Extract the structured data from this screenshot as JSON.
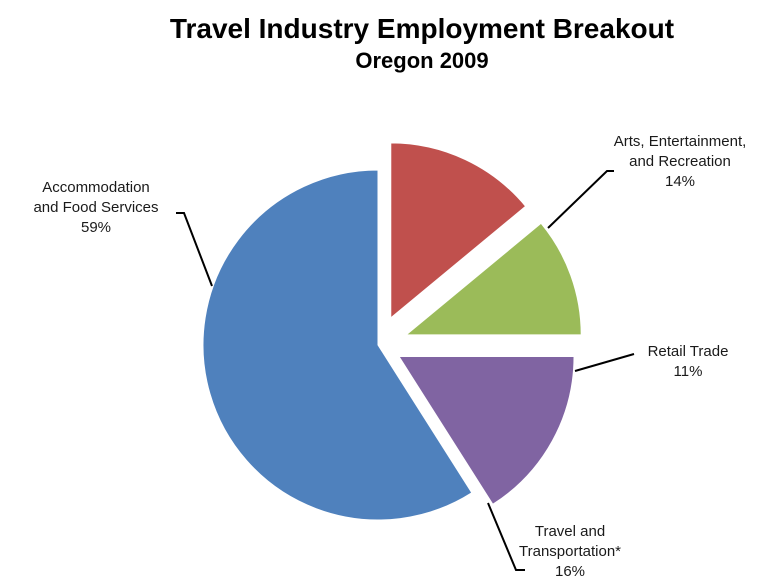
{
  "chart_data": {
    "type": "pie",
    "title": "Travel Industry Employment Breakout",
    "subtitle": "Oregon 2009",
    "slices": [
      {
        "category": "Arts, Entertainment, and Recreation",
        "label_lines": [
          "Arts, Entertainment,",
          "and Recreation"
        ],
        "value": 14,
        "value_label": "14%",
        "color": "#C0504D"
      },
      {
        "category": "Retail Trade",
        "label_lines": [
          "Retail Trade"
        ],
        "value": 11,
        "value_label": "11%",
        "color": "#9BBB59"
      },
      {
        "category": "Travel and Transportation*",
        "label_lines": [
          "Travel and",
          "Transportation*"
        ],
        "value": 16,
        "value_label": "16%",
        "color": "#8064A2"
      },
      {
        "category": "Accommodation and Food Services",
        "label_lines": [
          "Accommodation",
          "and Food Services"
        ],
        "value": 59,
        "value_label": "59%",
        "color": "#4F81BD"
      }
    ],
    "exploded": true,
    "legend": "none"
  }
}
